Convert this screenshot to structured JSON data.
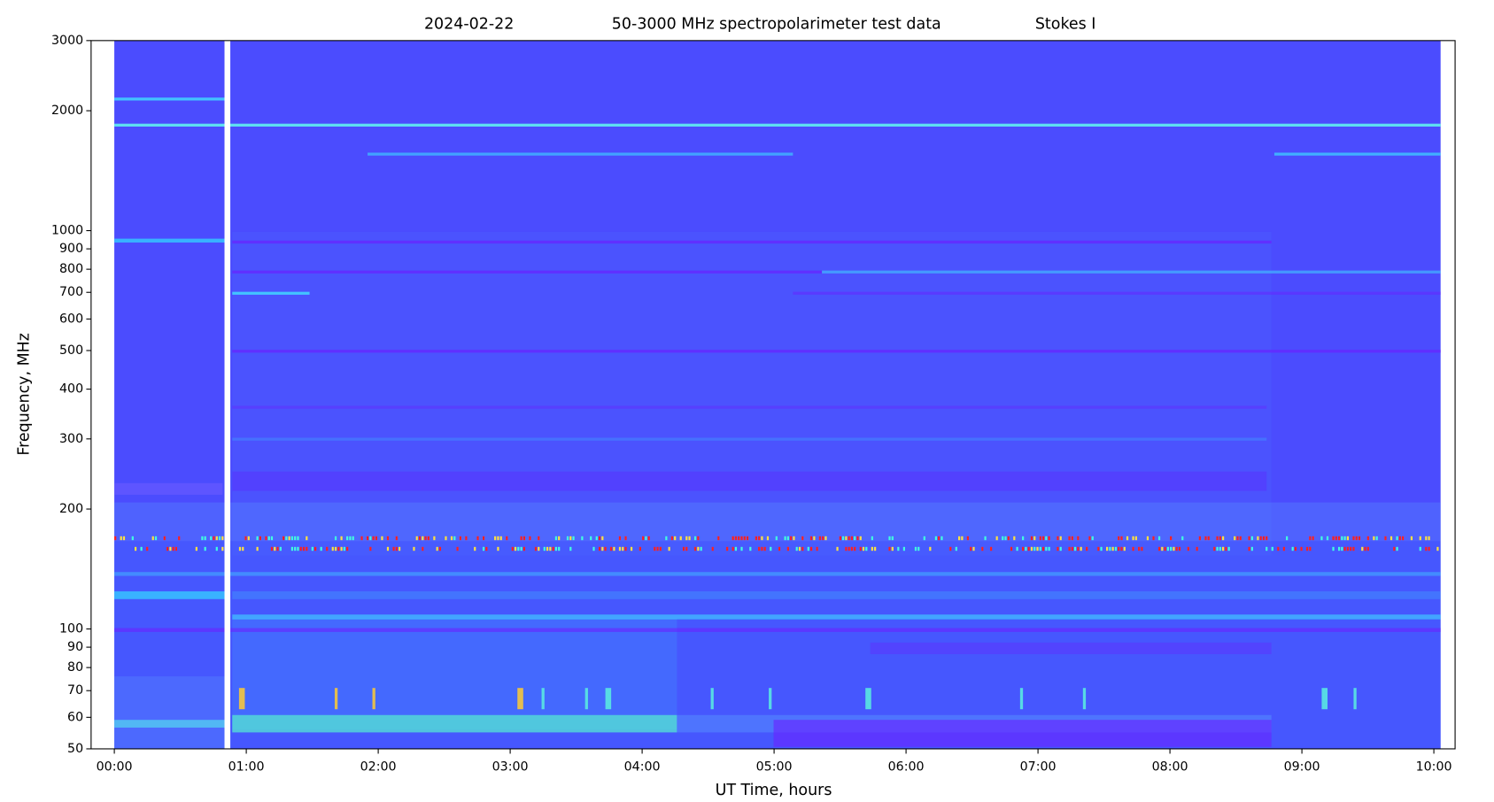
{
  "chart_data": {
    "type": "spectrogram",
    "title": [
      "2024-02-22",
      "50-3000 MHz spectropolarimeter test data",
      "Stokes I"
    ],
    "xlabel": "UT Time, hours",
    "ylabel": "Frequency, MHz",
    "xlim": [
      -0.176,
      10.161
    ],
    "xticks": [
      {
        "value": 0,
        "label": "00:00"
      },
      {
        "value": 1,
        "label": "01:00"
      },
      {
        "value": 2,
        "label": "02:00"
      },
      {
        "value": 3,
        "label": "03:00"
      },
      {
        "value": 4,
        "label": "04:00"
      },
      {
        "value": 5,
        "label": "05:00"
      },
      {
        "value": 6,
        "label": "06:00"
      },
      {
        "value": 7,
        "label": "07:00"
      },
      {
        "value": 8,
        "label": "08:00"
      },
      {
        "value": 9,
        "label": "09:00"
      },
      {
        "value": 10,
        "label": "10:00"
      }
    ],
    "ylim": [
      50,
      3000
    ],
    "yticks": [
      50,
      60,
      70,
      80,
      90,
      100,
      200,
      300,
      400,
      500,
      600,
      700,
      800,
      900,
      1000,
      2000,
      3000
    ],
    "yscale": "log"
  }
}
